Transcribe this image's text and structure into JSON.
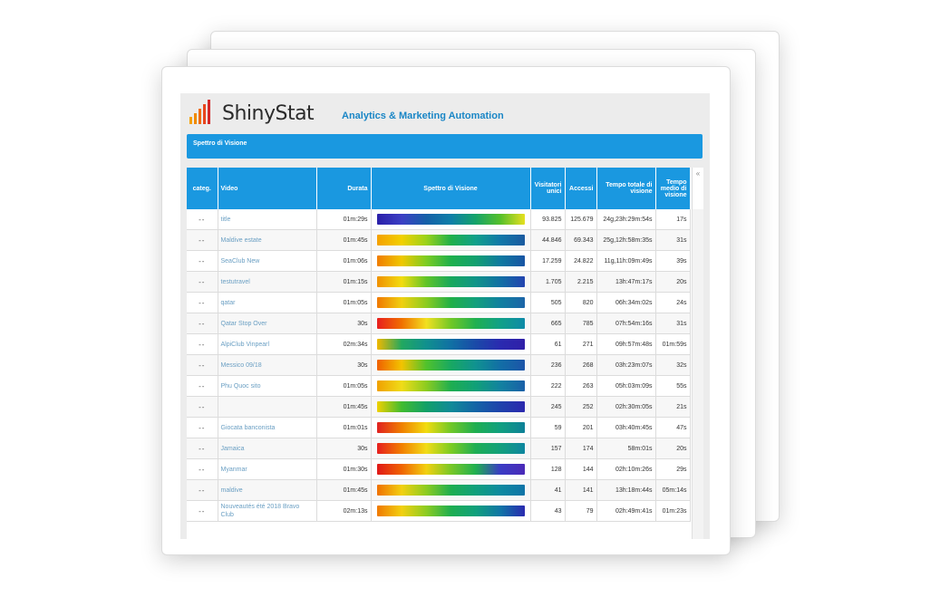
{
  "app": {
    "logo_text": "ShinyStat",
    "tagline": "Analytics & Marketing Automation",
    "section_title": "Spettro di Visione",
    "collapse_icon": "«"
  },
  "table": {
    "headers": {
      "categ": "categ.",
      "video": "Video",
      "durata": "Durata",
      "spettro": "Spettro di Visione",
      "visitatori": "Visitatori unici",
      "accessi": "Accessi",
      "tempo_totale": "Tempo totale di visione",
      "tempo_medio": "Tempo medio di visione"
    },
    "rows": [
      {
        "categ": "--",
        "video": "title",
        "durata": "01m:29s",
        "visitatori": "93.825",
        "accessi": "125.679",
        "tempo_totale": "24g,23h:29m:54s",
        "tempo_medio": "17s"
      },
      {
        "categ": "--",
        "video": "Maldive estate",
        "durata": "01m:45s",
        "visitatori": "44.846",
        "accessi": "69.343",
        "tempo_totale": "25g,12h:58m:35s",
        "tempo_medio": "31s"
      },
      {
        "categ": "--",
        "video": "SeaClub New",
        "durata": "01m:06s",
        "visitatori": "17.259",
        "accessi": "24.822",
        "tempo_totale": "11g,11h:09m:49s",
        "tempo_medio": "39s"
      },
      {
        "categ": "--",
        "video": "testutravel",
        "durata": "01m:15s",
        "visitatori": "1.705",
        "accessi": "2.215",
        "tempo_totale": "13h:47m:17s",
        "tempo_medio": "20s"
      },
      {
        "categ": "--",
        "video": "qatar",
        "durata": "01m:05s",
        "visitatori": "505",
        "accessi": "820",
        "tempo_totale": "06h:34m:02s",
        "tempo_medio": "24s"
      },
      {
        "categ": "--",
        "video": "Qatar Stop Over",
        "durata": "30s",
        "visitatori": "665",
        "accessi": "785",
        "tempo_totale": "07h:54m:16s",
        "tempo_medio": "31s"
      },
      {
        "categ": "--",
        "video": "AlpiClub Vinpearl",
        "durata": "02m:34s",
        "visitatori": "61",
        "accessi": "271",
        "tempo_totale": "09h:57m:48s",
        "tempo_medio": "01m:59s"
      },
      {
        "categ": "--",
        "video": "Messico 09/18",
        "durata": "30s",
        "visitatori": "236",
        "accessi": "268",
        "tempo_totale": "03h:23m:07s",
        "tempo_medio": "32s"
      },
      {
        "categ": "--",
        "video": "Phu Quoc sito",
        "durata": "01m:05s",
        "visitatori": "222",
        "accessi": "263",
        "tempo_totale": "05h:03m:09s",
        "tempo_medio": "55s"
      },
      {
        "categ": "--",
        "video": "",
        "durata": "01m:45s",
        "visitatori": "245",
        "accessi": "252",
        "tempo_totale": "02h:30m:05s",
        "tempo_medio": "21s"
      },
      {
        "categ": "--",
        "video": "Giocata banconista",
        "durata": "01m:01s",
        "visitatori": "59",
        "accessi": "201",
        "tempo_totale": "03h:40m:45s",
        "tempo_medio": "47s"
      },
      {
        "categ": "--",
        "video": "Jamaica",
        "durata": "30s",
        "visitatori": "157",
        "accessi": "174",
        "tempo_totale": "58m:01s",
        "tempo_medio": "20s"
      },
      {
        "categ": "--",
        "video": "Myanmar",
        "durata": "01m:30s",
        "visitatori": "128",
        "accessi": "144",
        "tempo_totale": "02h:10m:26s",
        "tempo_medio": "29s"
      },
      {
        "categ": "--",
        "video": "maldive",
        "durata": "01m:45s",
        "visitatori": "41",
        "accessi": "141",
        "tempo_totale": "13h:18m:44s",
        "tempo_medio": "05m:14s"
      },
      {
        "categ": "--",
        "video": "Nouveautés été 2018 Bravo Club",
        "durata": "02m:13s",
        "visitatori": "43",
        "accessi": "79",
        "tempo_totale": "02h:49m:41s",
        "tempo_medio": "01m:23s"
      }
    ],
    "spectra": [
      [
        "#2a1fa8",
        "#3b3fc4",
        "#1560a8",
        "#0e7fa8",
        "#14a36a",
        "#55c02a",
        "#e6e020"
      ],
      [
        "#f5a000",
        "#f2d000",
        "#9ad21a",
        "#1fb04a",
        "#10a08a",
        "#1078a8",
        "#1b5aa0"
      ],
      [
        "#f07c00",
        "#f0c800",
        "#7ccc22",
        "#1eb04c",
        "#12a070",
        "#0e7aa0",
        "#1854a4"
      ],
      [
        "#f09000",
        "#f2dc10",
        "#60c428",
        "#18a85c",
        "#109488",
        "#1270a4",
        "#2344b0"
      ],
      [
        "#f07800",
        "#f0d010",
        "#8ccc20",
        "#20b048",
        "#12a07c",
        "#1080a0",
        "#1c64a8"
      ],
      [
        "#e81e1e",
        "#f07000",
        "#f2e020",
        "#70c826",
        "#20b050",
        "#10a088",
        "#0e8aa8"
      ],
      [
        "#f0b800",
        "#22a860",
        "#10908e",
        "#1070a4",
        "#1a4aa8",
        "#2a2ab0",
        "#3020a8"
      ],
      [
        "#f06000",
        "#f2c400",
        "#50c22c",
        "#18a862",
        "#0f9290",
        "#126ea6",
        "#1c54a8"
      ],
      [
        "#f0a000",
        "#f0dc18",
        "#8ccc20",
        "#1eae50",
        "#10a078",
        "#1282a0",
        "#1a60a8"
      ],
      [
        "#f0d000",
        "#40bc30",
        "#12a068",
        "#0f8a98",
        "#1464a6",
        "#1e42ac",
        "#2b28ae"
      ],
      [
        "#e02020",
        "#f08000",
        "#f2dc10",
        "#70c828",
        "#1eae50",
        "#10a080",
        "#0e8098"
      ],
      [
        "#e61e1e",
        "#f28000",
        "#f2dc18",
        "#7ccc22",
        "#1eae54",
        "#12a07c",
        "#0e86a0"
      ],
      [
        "#e01818",
        "#f06400",
        "#f2d010",
        "#78c826",
        "#20b050",
        "#3a3cc4",
        "#4a2ab8"
      ],
      [
        "#f07000",
        "#f2d010",
        "#8ccc20",
        "#1eae50",
        "#10a07c",
        "#0e8aa0",
        "#1074a8"
      ],
      [
        "#f07800",
        "#f2d010",
        "#8ccc22",
        "#1eae50",
        "#10a07c",
        "#1076a6",
        "#2a2ab0"
      ]
    ]
  }
}
